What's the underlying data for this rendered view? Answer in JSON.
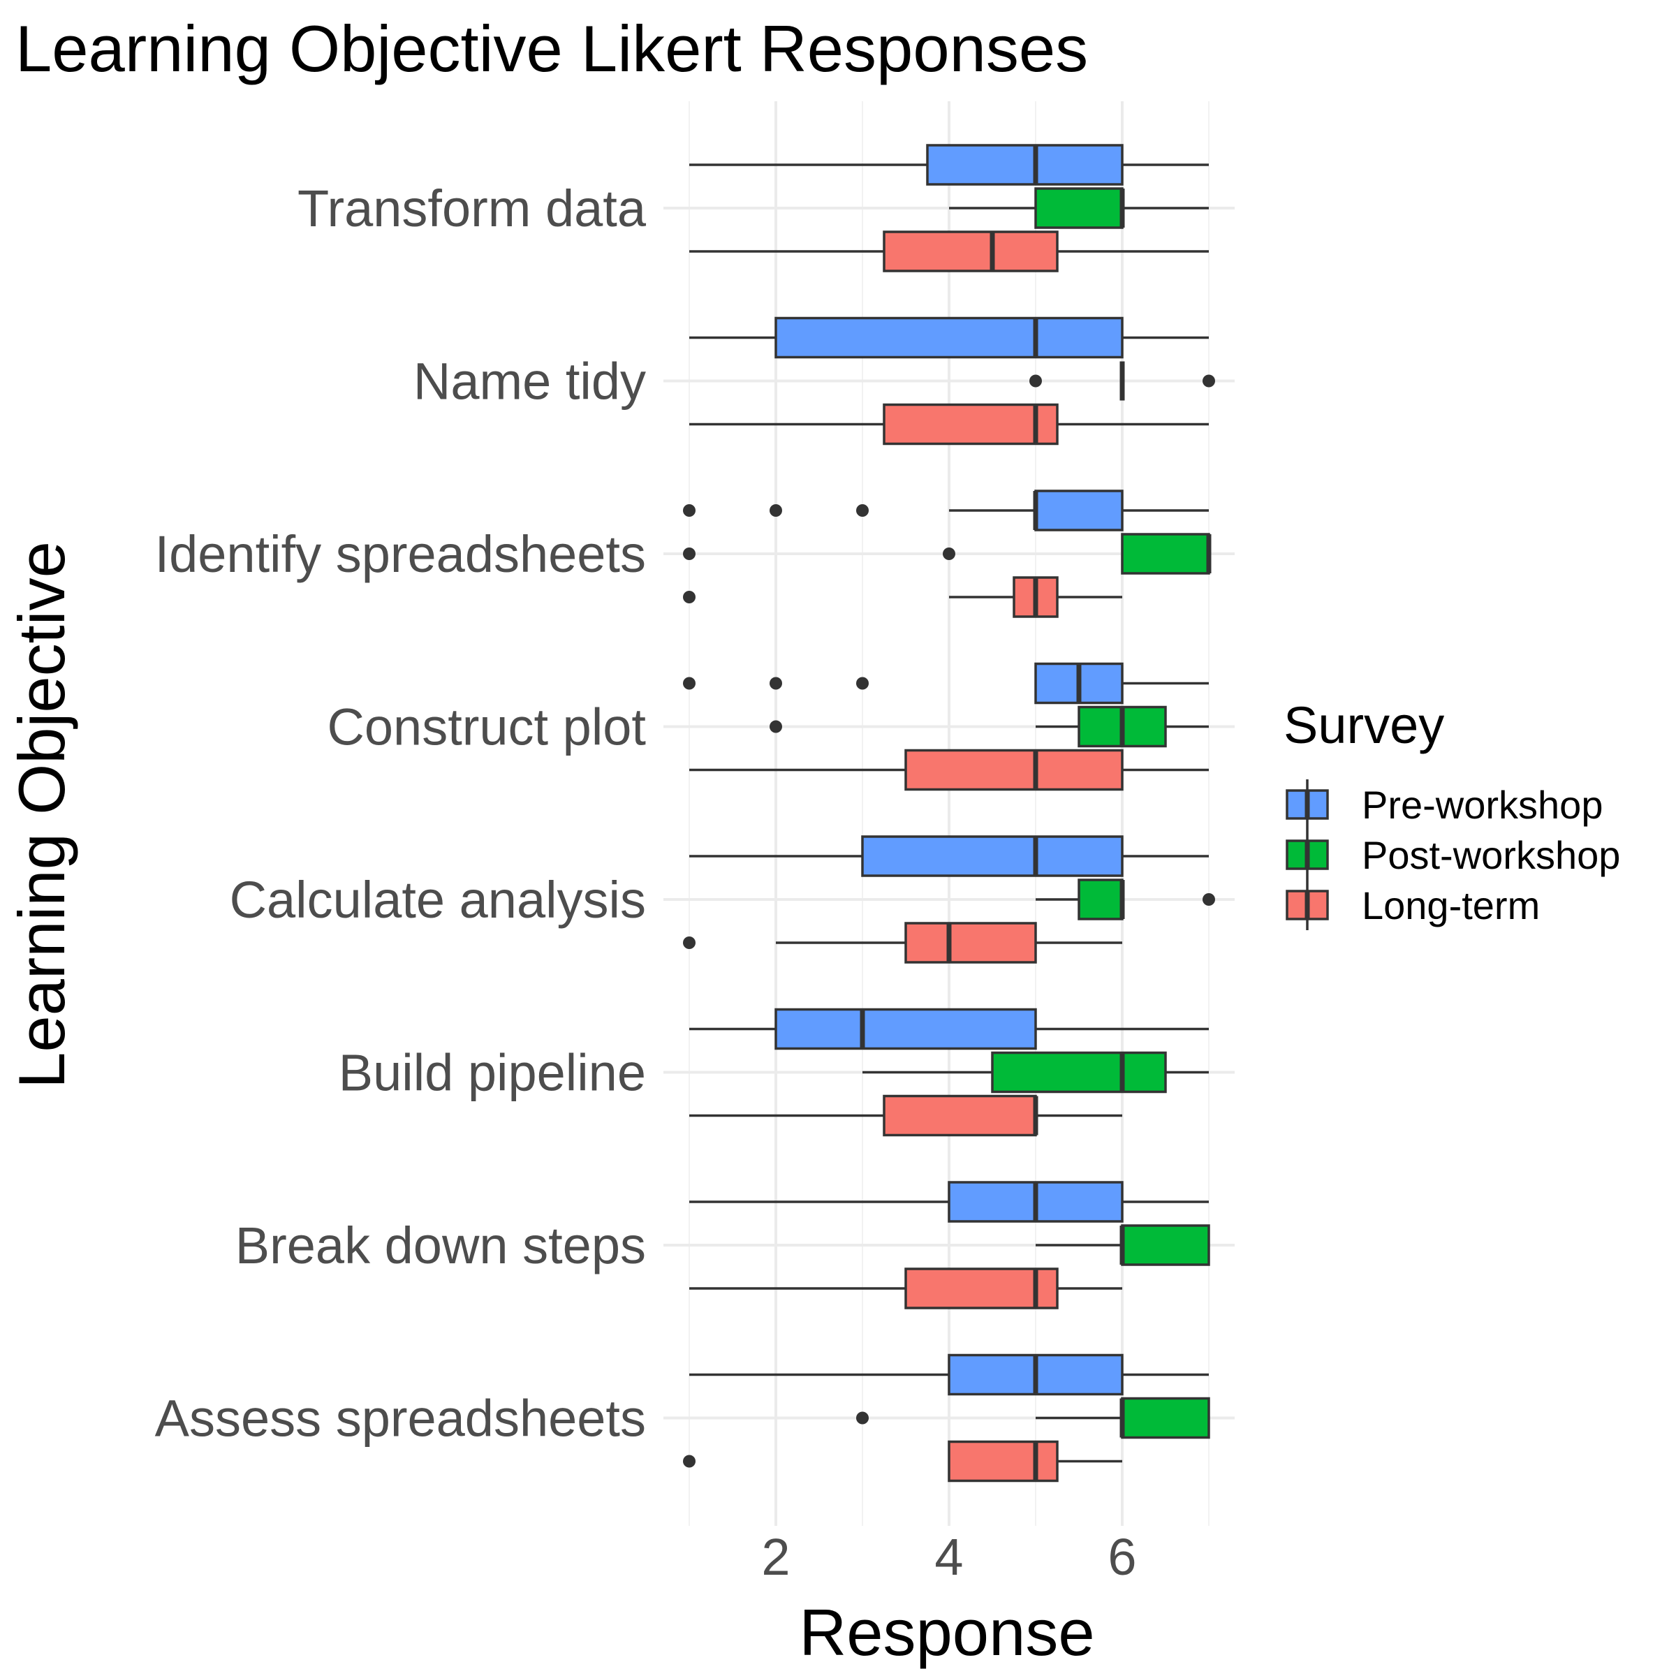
{
  "chart_data": {
    "type": "boxplot",
    "orientation": "horizontal",
    "title": "Learning Objective Likert Responses",
    "xlabel": "Response",
    "ylabel": "Learning Objective",
    "xlim": [
      0.8,
      7.3
    ],
    "xticks": [
      2,
      4,
      6
    ],
    "grid": true,
    "legend": {
      "title": "Survey",
      "position": "right"
    },
    "series": [
      {
        "name": "Pre-workshop",
        "color": "#619CFF"
      },
      {
        "name": "Post-workshop",
        "color": "#00BA38"
      },
      {
        "name": "Long-term",
        "color": "#F8766D"
      }
    ],
    "categories": [
      "Transform data",
      "Name tidy",
      "Identify spreadsheets",
      "Construct plot",
      "Calculate analysis",
      "Build pipeline",
      "Break down steps",
      "Assess spreadsheets"
    ],
    "boxes": [
      {
        "category": "Transform data",
        "series": "Pre-workshop",
        "min": 1,
        "q1": 3.75,
        "median": 5,
        "q3": 6,
        "max": 7,
        "outliers": []
      },
      {
        "category": "Transform data",
        "series": "Post-workshop",
        "min": 4,
        "q1": 5,
        "median": 6,
        "q3": 6,
        "max": 7,
        "outliers": []
      },
      {
        "category": "Transform data",
        "series": "Long-term",
        "min": 1,
        "q1": 3.25,
        "median": 4.5,
        "q3": 5.25,
        "max": 7,
        "outliers": []
      },
      {
        "category": "Name tidy",
        "series": "Pre-workshop",
        "min": 1,
        "q1": 2,
        "median": 5,
        "q3": 6,
        "max": 7,
        "outliers": []
      },
      {
        "category": "Name tidy",
        "series": "Post-workshop",
        "min": 6,
        "q1": 6,
        "median": 6,
        "q3": 6,
        "max": 6,
        "outliers": [
          5,
          7
        ]
      },
      {
        "category": "Name tidy",
        "series": "Long-term",
        "min": 1,
        "q1": 3.25,
        "median": 5,
        "q3": 5.25,
        "max": 7,
        "outliers": []
      },
      {
        "category": "Identify spreadsheets",
        "series": "Pre-workshop",
        "min": 4,
        "q1": 5,
        "median": 5,
        "q3": 6,
        "max": 7,
        "outliers": [
          1,
          2,
          3
        ]
      },
      {
        "category": "Identify spreadsheets",
        "series": "Post-workshop",
        "min": 6,
        "q1": 6,
        "median": 7,
        "q3": 7,
        "max": 7,
        "outliers": [
          1,
          4
        ]
      },
      {
        "category": "Identify spreadsheets",
        "series": "Long-term",
        "min": 4,
        "q1": 4.75,
        "median": 5,
        "q3": 5.25,
        "max": 6,
        "outliers": [
          1
        ]
      },
      {
        "category": "Construct plot",
        "series": "Pre-workshop",
        "min": 5,
        "q1": 5,
        "median": 5.5,
        "q3": 6,
        "max": 7,
        "outliers": [
          1,
          2,
          3
        ]
      },
      {
        "category": "Construct plot",
        "series": "Post-workshop",
        "min": 5,
        "q1": 5.5,
        "median": 6,
        "q3": 6.5,
        "max": 7,
        "outliers": [
          2
        ]
      },
      {
        "category": "Construct plot",
        "series": "Long-term",
        "min": 1,
        "q1": 3.5,
        "median": 5,
        "q3": 6,
        "max": 7,
        "outliers": []
      },
      {
        "category": "Calculate analysis",
        "series": "Pre-workshop",
        "min": 1,
        "q1": 3,
        "median": 5,
        "q3": 6,
        "max": 7,
        "outliers": []
      },
      {
        "category": "Calculate analysis",
        "series": "Post-workshop",
        "min": 5,
        "q1": 5.5,
        "median": 6,
        "q3": 6,
        "max": 6,
        "outliers": [
          7
        ]
      },
      {
        "category": "Calculate analysis",
        "series": "Long-term",
        "min": 2,
        "q1": 3.5,
        "median": 4,
        "q3": 5,
        "max": 6,
        "outliers": [
          1
        ]
      },
      {
        "category": "Build pipeline",
        "series": "Pre-workshop",
        "min": 1,
        "q1": 2,
        "median": 3,
        "q3": 5,
        "max": 7,
        "outliers": []
      },
      {
        "category": "Build pipeline",
        "series": "Post-workshop",
        "min": 3,
        "q1": 4.5,
        "median": 6,
        "q3": 6.5,
        "max": 7,
        "outliers": []
      },
      {
        "category": "Build pipeline",
        "series": "Long-term",
        "min": 1,
        "q1": 3.25,
        "median": 5,
        "q3": 5,
        "max": 6,
        "outliers": []
      },
      {
        "category": "Break down steps",
        "series": "Pre-workshop",
        "min": 1,
        "q1": 4,
        "median": 5,
        "q3": 6,
        "max": 7,
        "outliers": []
      },
      {
        "category": "Break down steps",
        "series": "Post-workshop",
        "min": 5,
        "q1": 6,
        "median": 6,
        "q3": 7,
        "max": 7,
        "outliers": []
      },
      {
        "category": "Break down steps",
        "series": "Long-term",
        "min": 1,
        "q1": 3.5,
        "median": 5,
        "q3": 5.25,
        "max": 6,
        "outliers": []
      },
      {
        "category": "Assess spreadsheets",
        "series": "Pre-workshop",
        "min": 1,
        "q1": 4,
        "median": 5,
        "q3": 6,
        "max": 7,
        "outliers": []
      },
      {
        "category": "Assess spreadsheets",
        "series": "Post-workshop",
        "min": 5,
        "q1": 6,
        "median": 6,
        "q3": 7,
        "max": 7,
        "outliers": [
          3
        ]
      },
      {
        "category": "Assess spreadsheets",
        "series": "Long-term",
        "min": 4,
        "q1": 4,
        "median": 5,
        "q3": 5.25,
        "max": 6,
        "outliers": [
          1
        ]
      }
    ]
  }
}
